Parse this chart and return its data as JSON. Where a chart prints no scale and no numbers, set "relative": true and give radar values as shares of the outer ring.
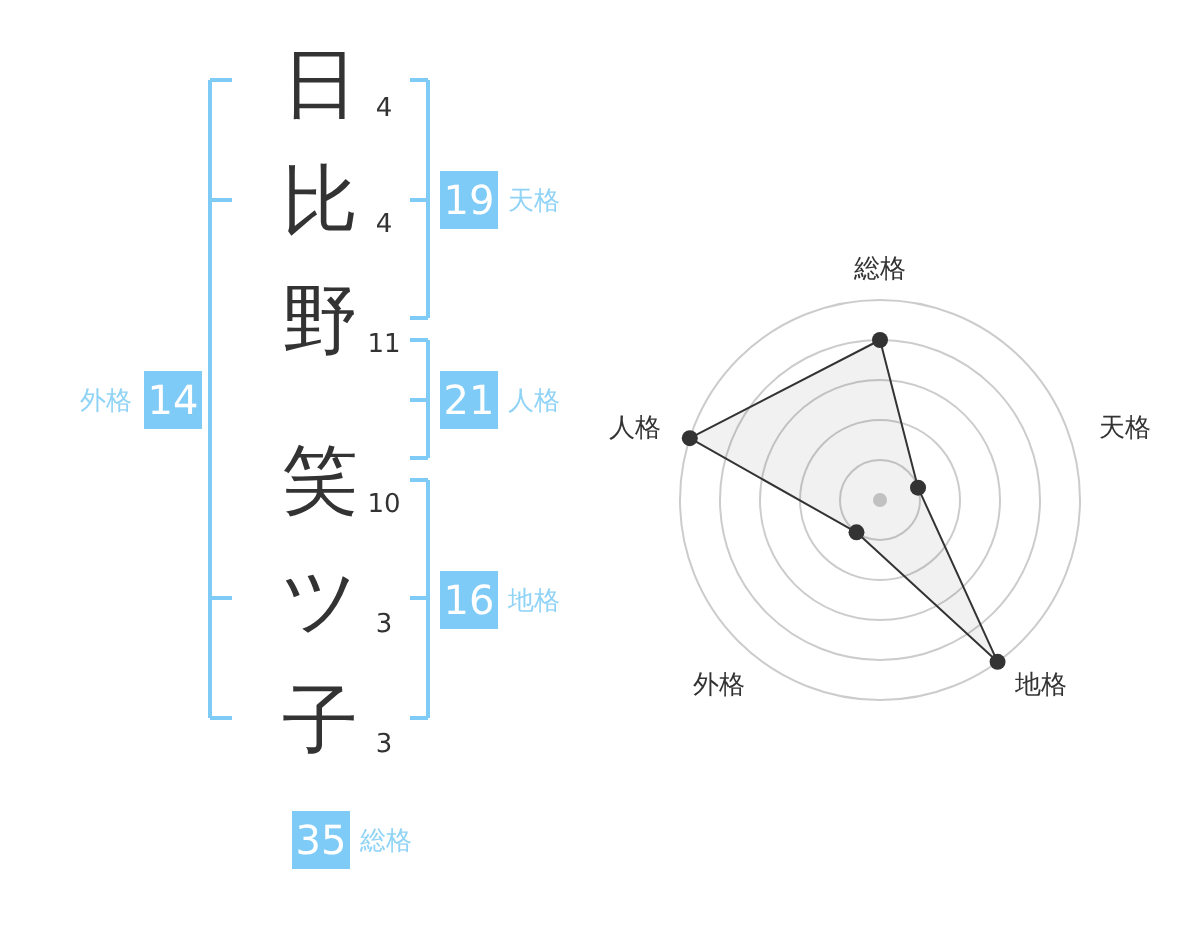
{
  "chart_data": [
    {
      "type": "other",
      "categories": [
        "日",
        "比",
        "野",
        "笑",
        "ツ",
        "子"
      ],
      "values": [
        4,
        4,
        11,
        10,
        3,
        3
      ],
      "data_labels": true
    },
    {
      "type": "other",
      "categories": [
        "天格",
        "人格",
        "地格",
        "外格",
        "総格"
      ],
      "values": [
        19,
        21,
        16,
        14,
        35
      ],
      "data_labels": true
    },
    {
      "type": "radar",
      "categories": [
        "総格",
        "天格",
        "地格",
        "外格",
        "人格"
      ],
      "relative": true,
      "grid": true,
      "marker": "circle",
      "series": [
        {
          "color": "#333333",
          "values": [
            0.8,
            0.2,
            1,
            0.2,
            1
          ]
        }
      ]
    }
  ]
}
